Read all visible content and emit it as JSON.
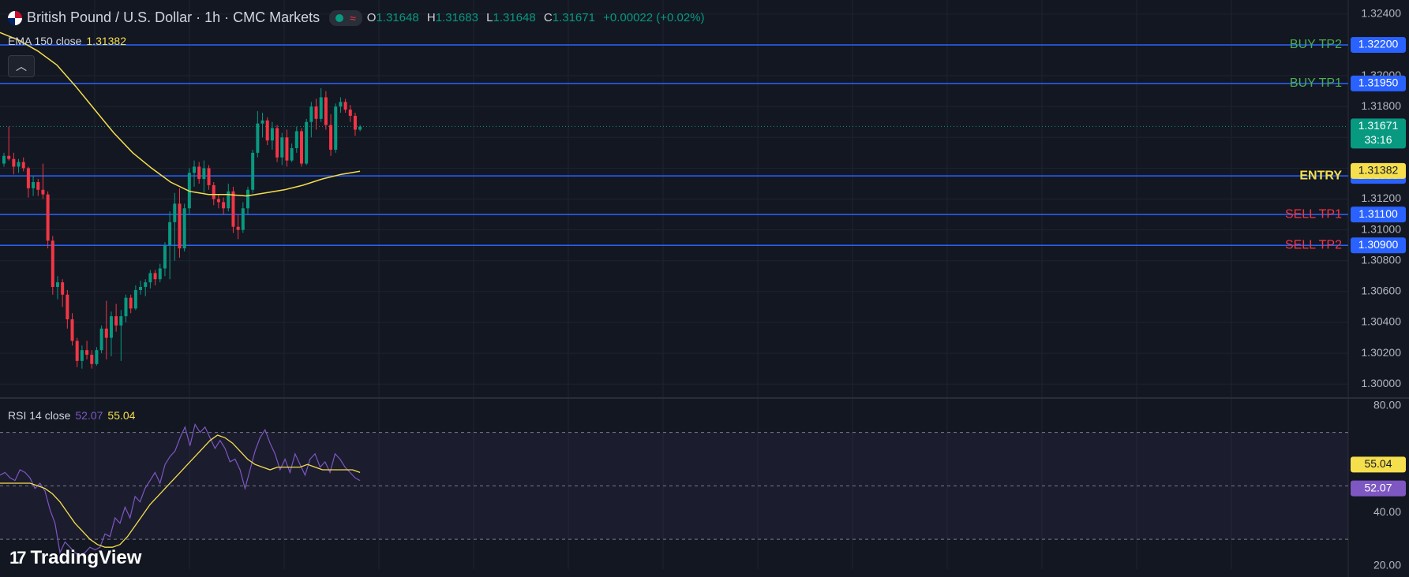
{
  "header": {
    "symbol_title": "British Pound / U.S. Dollar · 1h · CMC Markets",
    "status_icon": "market-open-dot",
    "session_icon": "approx-wave-icon",
    "ohlc": {
      "o_label": "O",
      "o_value": "1.31648",
      "h_label": "H",
      "h_value": "1.31683",
      "l_label": "L",
      "l_value": "1.31648",
      "c_label": "C",
      "c_value": "1.31671",
      "change": "+0.00022 (+0.02%)"
    }
  },
  "ema_legend": {
    "label": "EMA 150 close",
    "value": "1.31382"
  },
  "rsi_legend": {
    "label": "RSI 14 close",
    "value1": "52.07",
    "value2": "55.04"
  },
  "collapse_icon": "chevron-up-icon",
  "brand": {
    "text": "TradingView",
    "logo": "17"
  },
  "colors": {
    "background": "#131722",
    "up": "#089981",
    "down": "#f23645",
    "ema": "#f5df4d",
    "level_line": "#2962ff",
    "rsi_line": "#7e57c2",
    "rsi_ma": "#f5df4d",
    "buy_label": "#4caf50",
    "sell_label": "#f23645",
    "entry_label": "#f5df4d"
  },
  "chart_data": [
    {
      "type": "candlestick",
      "title": "British Pound / U.S. Dollar · 1h · CMC Markets",
      "y_ticks": [
        "1.32400",
        "1.32000",
        "1.31800",
        "1.31200",
        "1.31000",
        "1.30800",
        "1.30600",
        "1.30400",
        "1.30200",
        "1.30000"
      ],
      "ylim": [
        1.2995,
        1.3244
      ],
      "last_price": {
        "value": "1.31671",
        "countdown": "33:16"
      },
      "levels": [
        {
          "label": "BUY TP2",
          "price": 1.322,
          "price_text": "1.32200",
          "kind": "buy"
        },
        {
          "label": "BUY TP1",
          "price": 1.3195,
          "price_text": "1.31950",
          "kind": "buy"
        },
        {
          "label": "ENTRY",
          "price": 1.3135,
          "price_text": "1.31350",
          "kind": "entry"
        },
        {
          "label": "SELL TP1",
          "price": 1.311,
          "price_text": "1.31100",
          "kind": "sell"
        },
        {
          "label": "SELL TP2",
          "price": 1.309,
          "price_text": "1.30900",
          "kind": "sell"
        }
      ],
      "ema": {
        "label": "EMA 150 close",
        "value": 1.31382,
        "value_text": "1.31382",
        "points": [
          1.3228,
          1.3223,
          1.3216,
          1.3207,
          1.3193,
          1.3178,
          1.3163,
          1.315,
          1.314,
          1.3131,
          1.3125,
          1.3123,
          1.3123,
          1.3122,
          1.3124,
          1.3126,
          1.3129,
          1.3133,
          1.3136,
          1.3138
        ]
      },
      "candles": [
        [
          1.3143,
          1.315,
          1.3141,
          1.3148
        ],
        [
          1.3148,
          1.3167,
          1.3145,
          1.3146
        ],
        [
          1.3146,
          1.315,
          1.3136,
          1.3141
        ],
        [
          1.3141,
          1.3146,
          1.3137,
          1.3144
        ],
        [
          1.3144,
          1.3147,
          1.3138,
          1.314
        ],
        [
          1.314,
          1.3141,
          1.3121,
          1.3127
        ],
        [
          1.3127,
          1.3135,
          1.3122,
          1.3131
        ],
        [
          1.3131,
          1.3133,
          1.3122,
          1.3126
        ],
        [
          1.3126,
          1.3143,
          1.312,
          1.3123
        ],
        [
          1.3123,
          1.3125,
          1.3088,
          1.3093
        ],
        [
          1.3093,
          1.3096,
          1.3058,
          1.3063
        ],
        [
          1.3063,
          1.307,
          1.3055,
          1.3066
        ],
        [
          1.3066,
          1.3068,
          1.305,
          1.3058
        ],
        [
          1.3058,
          1.3061,
          1.3036,
          1.3042
        ],
        [
          1.3042,
          1.3046,
          1.3025,
          1.3028
        ],
        [
          1.3028,
          1.303,
          1.3011,
          1.3015
        ],
        [
          1.3015,
          1.3025,
          1.301,
          1.3022
        ],
        [
          1.3022,
          1.3028,
          1.3016,
          1.3019
        ],
        [
          1.3019,
          1.3022,
          1.301,
          1.3013
        ],
        [
          1.3013,
          1.3024,
          1.3012,
          1.3022
        ],
        [
          1.3022,
          1.3038,
          1.302,
          1.3036
        ],
        [
          1.3036,
          1.3054,
          1.3016,
          1.303
        ],
        [
          1.303,
          1.3047,
          1.3018,
          1.3044
        ],
        [
          1.3044,
          1.3052,
          1.3034,
          1.3038
        ],
        [
          1.3038,
          1.3048,
          1.3015,
          1.3044
        ],
        [
          1.3044,
          1.3058,
          1.304,
          1.3056
        ],
        [
          1.3056,
          1.3058,
          1.3046,
          1.3049
        ],
        [
          1.3049,
          1.3064,
          1.3048,
          1.3061
        ],
        [
          1.3061,
          1.3067,
          1.3058,
          1.3063
        ],
        [
          1.3063,
          1.3068,
          1.3057,
          1.3066
        ],
        [
          1.3066,
          1.3074,
          1.3062,
          1.3072
        ],
        [
          1.3072,
          1.3074,
          1.3064,
          1.3068
        ],
        [
          1.3068,
          1.3078,
          1.3066,
          1.3075
        ],
        [
          1.3075,
          1.3092,
          1.307,
          1.309
        ],
        [
          1.309,
          1.3112,
          1.3068,
          1.3105
        ],
        [
          1.3105,
          1.3124,
          1.308,
          1.3117
        ],
        [
          1.3117,
          1.3127,
          1.3082,
          1.3088
        ],
        [
          1.3088,
          1.3117,
          1.3086,
          1.3114
        ],
        [
          1.3114,
          1.314,
          1.311,
          1.3137
        ],
        [
          1.3137,
          1.3145,
          1.3128,
          1.3141
        ],
        [
          1.3141,
          1.3144,
          1.313,
          1.3133
        ],
        [
          1.3133,
          1.3145,
          1.3124,
          1.314
        ],
        [
          1.314,
          1.3142,
          1.3126,
          1.3129
        ],
        [
          1.3129,
          1.3131,
          1.3116,
          1.312
        ],
        [
          1.312,
          1.3123,
          1.3114,
          1.3118
        ],
        [
          1.3118,
          1.3121,
          1.311,
          1.3114
        ],
        [
          1.3114,
          1.313,
          1.3112,
          1.3125
        ],
        [
          1.3125,
          1.3128,
          1.3098,
          1.3102
        ],
        [
          1.3102,
          1.311,
          1.3094,
          1.31
        ],
        [
          1.31,
          1.3118,
          1.3098,
          1.3114
        ],
        [
          1.3114,
          1.3128,
          1.311,
          1.3126
        ],
        [
          1.3126,
          1.3152,
          1.3124,
          1.315
        ],
        [
          1.315,
          1.3177,
          1.3147,
          1.3169
        ],
        [
          1.3169,
          1.3176,
          1.316,
          1.3171
        ],
        [
          1.3171,
          1.3173,
          1.3155,
          1.3158
        ],
        [
          1.3158,
          1.317,
          1.3152,
          1.3166
        ],
        [
          1.3166,
          1.3168,
          1.3144,
          1.3147
        ],
        [
          1.3147,
          1.3163,
          1.3142,
          1.316
        ],
        [
          1.316,
          1.3165,
          1.3141,
          1.3145
        ],
        [
          1.3145,
          1.3156,
          1.3144,
          1.3153
        ],
        [
          1.3153,
          1.3167,
          1.315,
          1.3164
        ],
        [
          1.3164,
          1.3166,
          1.3141,
          1.3143
        ],
        [
          1.3143,
          1.3172,
          1.3142,
          1.317
        ],
        [
          1.317,
          1.3183,
          1.316,
          1.318
        ],
        [
          1.318,
          1.3185,
          1.3165,
          1.3172
        ],
        [
          1.3172,
          1.3192,
          1.317,
          1.3186
        ],
        [
          1.3186,
          1.319,
          1.3165,
          1.3168
        ],
        [
          1.3168,
          1.3175,
          1.3148,
          1.3152
        ],
        [
          1.3152,
          1.3182,
          1.315,
          1.318
        ],
        [
          1.318,
          1.3186,
          1.3176,
          1.3183
        ],
        [
          1.3183,
          1.3185,
          1.3176,
          1.3178
        ],
        [
          1.3178,
          1.3181,
          1.317,
          1.3174
        ],
        [
          1.3174,
          1.3176,
          1.3161,
          1.3165
        ],
        [
          1.3165,
          1.3168,
          1.3164,
          1.3167
        ]
      ]
    },
    {
      "type": "line",
      "title": "RSI 14 close",
      "y_ticks": [
        "80.00",
        "40.00",
        "20.00"
      ],
      "ylim": [
        18.8,
        81.4
      ],
      "bands": [
        70,
        50,
        30
      ],
      "series": [
        {
          "name": "RSI 14 close",
          "value_text": "52.07",
          "values": [
            54,
            55,
            53,
            52,
            56,
            55,
            53,
            49,
            51,
            48,
            41,
            36,
            25,
            29,
            27,
            25,
            24,
            25,
            27,
            26,
            27,
            32,
            31,
            38,
            36,
            42,
            38,
            46,
            44,
            49,
            52,
            55,
            51,
            58,
            61,
            63,
            68,
            72,
            65,
            73,
            70,
            72,
            68,
            64,
            67,
            64,
            59,
            60,
            56,
            49,
            56,
            63,
            68,
            71,
            66,
            62,
            56,
            60,
            55,
            62,
            58,
            54,
            60,
            62,
            57,
            59,
            55,
            62,
            60,
            57,
            55,
            53,
            52
          ]
        },
        {
          "name": "RSI-based MA",
          "value_text": "55.04",
          "values": [
            51,
            51,
            51,
            51,
            51,
            50,
            49,
            47,
            44,
            40,
            36,
            33,
            30,
            28,
            27,
            27,
            28,
            31,
            35,
            39,
            43,
            46,
            49,
            52,
            55,
            58,
            61,
            64,
            67,
            69,
            68,
            66,
            63,
            60,
            58,
            57,
            56,
            57,
            57,
            57,
            57,
            58,
            57,
            56,
            56,
            56,
            56,
            56,
            55
          ]
        }
      ]
    }
  ]
}
